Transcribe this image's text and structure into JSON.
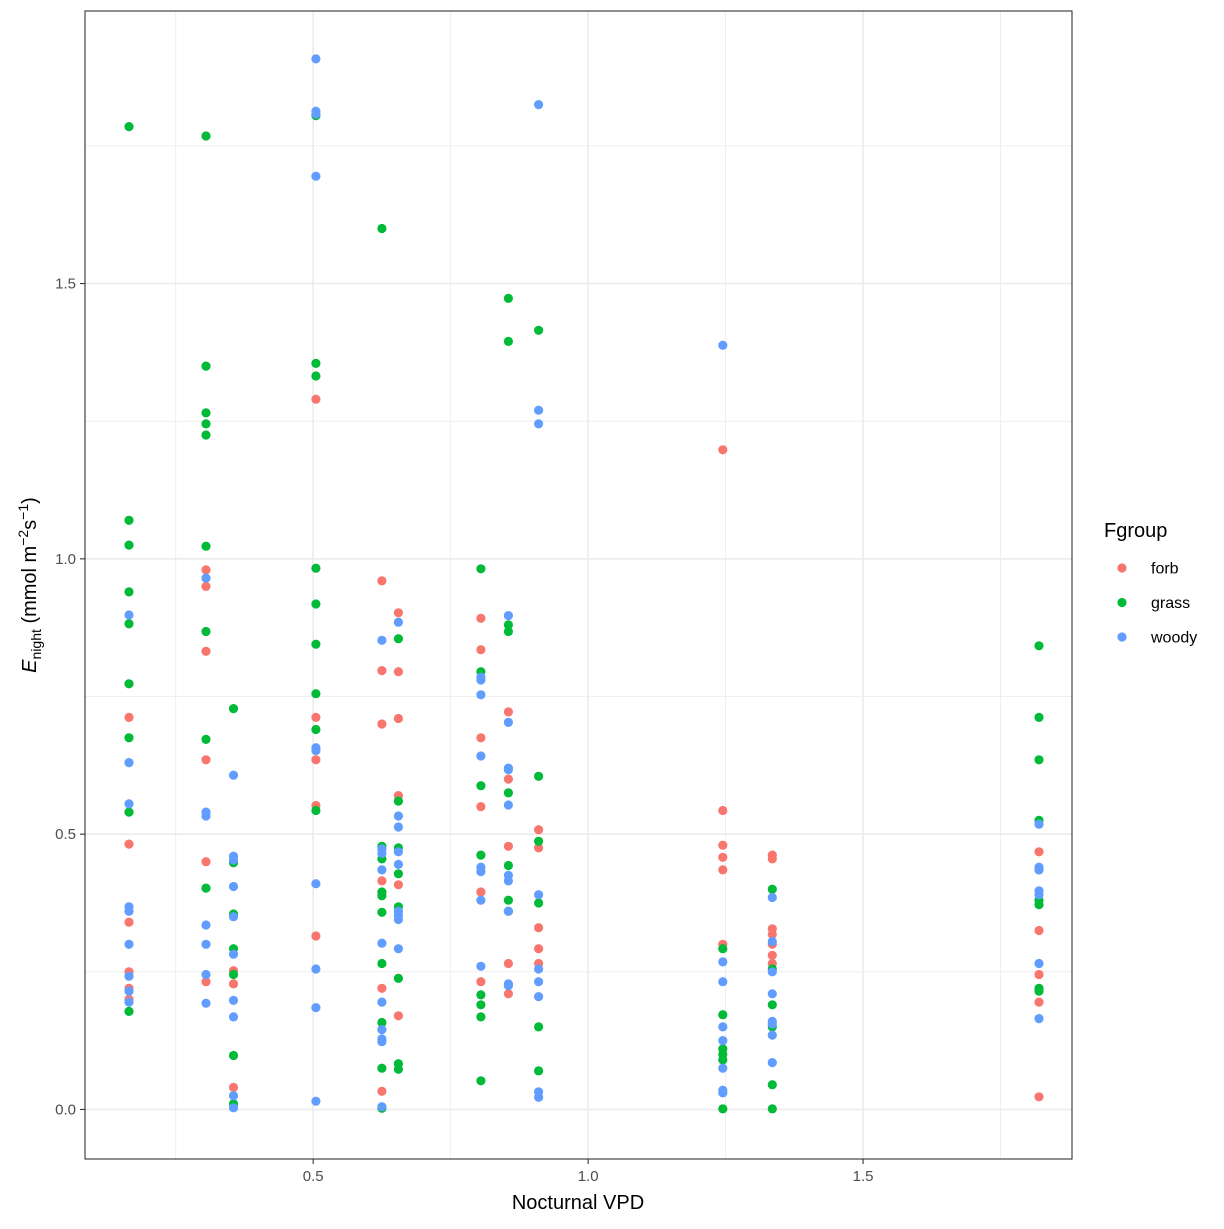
{
  "chart_data": {
    "type": "scatter",
    "xlabel": "Nocturnal VPD",
    "ylabel": {
      "main": "E",
      "sub": "night",
      "unit_open": " (mmol m",
      "exp1": "−2",
      "unit_mid": "s",
      "exp2": "−1",
      "unit_close": ")"
    },
    "xlim": [
      0.085,
      1.88
    ],
    "ylim": [
      -0.09,
      1.995
    ],
    "x_ticks": [
      {
        "value": 0.5,
        "label": "0.5"
      },
      {
        "value": 1.0,
        "label": "1.0"
      },
      {
        "value": 1.5,
        "label": "1.5"
      }
    ],
    "y_ticks": [
      {
        "value": 0.0,
        "label": "0.0"
      },
      {
        "value": 0.5,
        "label": "0.5"
      },
      {
        "value": 1.0,
        "label": "1.0"
      },
      {
        "value": 1.5,
        "label": "1.5"
      }
    ],
    "x_minor": [
      0.25,
      0.75,
      1.25,
      1.75
    ],
    "y_minor": [
      0.25,
      0.75,
      1.25,
      1.75
    ],
    "grid": true,
    "legend": {
      "title": "Fgroup",
      "position": "right"
    },
    "series": [
      {
        "name": "forb",
        "color": "#F8766D",
        "points": [
          [
            0.165,
            0.712
          ],
          [
            0.165,
            0.482
          ],
          [
            0.165,
            0.34
          ],
          [
            0.165,
            0.25
          ],
          [
            0.165,
            0.22
          ],
          [
            0.165,
            0.2
          ],
          [
            0.305,
            0.98
          ],
          [
            0.305,
            0.95
          ],
          [
            0.305,
            0.832
          ],
          [
            0.305,
            0.635
          ],
          [
            0.305,
            0.45
          ],
          [
            0.305,
            0.232
          ],
          [
            0.355,
            0.252
          ],
          [
            0.355,
            0.228
          ],
          [
            0.355,
            0.04
          ],
          [
            0.505,
            1.29
          ],
          [
            0.505,
            0.712
          ],
          [
            0.505,
            0.635
          ],
          [
            0.505,
            0.552
          ],
          [
            0.505,
            0.315
          ],
          [
            0.625,
            0.96
          ],
          [
            0.625,
            0.797
          ],
          [
            0.625,
            0.7
          ],
          [
            0.625,
            0.415
          ],
          [
            0.625,
            0.22
          ],
          [
            0.625,
            0.033
          ],
          [
            0.655,
            0.902
          ],
          [
            0.655,
            0.795
          ],
          [
            0.655,
            0.71
          ],
          [
            0.655,
            0.57
          ],
          [
            0.655,
            0.408
          ],
          [
            0.655,
            0.17
          ],
          [
            0.805,
            0.892
          ],
          [
            0.805,
            0.835
          ],
          [
            0.805,
            0.675
          ],
          [
            0.805,
            0.55
          ],
          [
            0.805,
            0.395
          ],
          [
            0.805,
            0.232
          ],
          [
            0.855,
            0.722
          ],
          [
            0.855,
            0.6
          ],
          [
            0.855,
            0.478
          ],
          [
            0.855,
            0.265
          ],
          [
            0.855,
            0.21
          ],
          [
            0.91,
            0.508
          ],
          [
            0.91,
            0.475
          ],
          [
            0.91,
            0.33
          ],
          [
            0.91,
            0.292
          ],
          [
            0.91,
            0.265
          ],
          [
            1.245,
            1.198
          ],
          [
            1.245,
            0.543
          ],
          [
            1.245,
            0.48
          ],
          [
            1.245,
            0.458
          ],
          [
            1.245,
            0.435
          ],
          [
            1.245,
            0.3
          ],
          [
            1.335,
            0.462
          ],
          [
            1.335,
            0.455
          ],
          [
            1.335,
            0.328
          ],
          [
            1.335,
            0.318
          ],
          [
            1.335,
            0.3
          ],
          [
            1.335,
            0.28
          ],
          [
            1.335,
            0.265
          ],
          [
            1.82,
            0.468
          ],
          [
            1.82,
            0.325
          ],
          [
            1.82,
            0.245
          ],
          [
            1.82,
            0.195
          ],
          [
            1.82,
            0.023
          ]
        ]
      },
      {
        "name": "grass",
        "color": "#00BA38",
        "points": [
          [
            0.165,
            1.785
          ],
          [
            0.165,
            1.07
          ],
          [
            0.165,
            1.025
          ],
          [
            0.165,
            0.94
          ],
          [
            0.165,
            0.882
          ],
          [
            0.165,
            0.773
          ],
          [
            0.165,
            0.675
          ],
          [
            0.165,
            0.54
          ],
          [
            0.165,
            0.178
          ],
          [
            0.305,
            1.768
          ],
          [
            0.305,
            1.35
          ],
          [
            0.305,
            1.265
          ],
          [
            0.305,
            1.245
          ],
          [
            0.305,
            1.225
          ],
          [
            0.305,
            1.023
          ],
          [
            0.305,
            0.868
          ],
          [
            0.305,
            0.672
          ],
          [
            0.305,
            0.402
          ],
          [
            0.355,
            0.728
          ],
          [
            0.355,
            0.448
          ],
          [
            0.355,
            0.355
          ],
          [
            0.355,
            0.292
          ],
          [
            0.355,
            0.245
          ],
          [
            0.355,
            0.098
          ],
          [
            0.355,
            0.01
          ],
          [
            0.505,
            1.805
          ],
          [
            0.505,
            1.355
          ],
          [
            0.505,
            1.332
          ],
          [
            0.505,
            0.983
          ],
          [
            0.505,
            0.918
          ],
          [
            0.505,
            0.845
          ],
          [
            0.505,
            0.755
          ],
          [
            0.505,
            0.69
          ],
          [
            0.505,
            0.543
          ],
          [
            0.625,
            1.6
          ],
          [
            0.625,
            0.478
          ],
          [
            0.625,
            0.455
          ],
          [
            0.625,
            0.395
          ],
          [
            0.625,
            0.388
          ],
          [
            0.625,
            0.358
          ],
          [
            0.625,
            0.265
          ],
          [
            0.625,
            0.158
          ],
          [
            0.625,
            0.075
          ],
          [
            0.625,
            0.002
          ],
          [
            0.655,
            0.855
          ],
          [
            0.655,
            0.56
          ],
          [
            0.655,
            0.475
          ],
          [
            0.655,
            0.428
          ],
          [
            0.655,
            0.368
          ],
          [
            0.655,
            0.238
          ],
          [
            0.655,
            0.083
          ],
          [
            0.655,
            0.073
          ],
          [
            0.805,
            0.982
          ],
          [
            0.805,
            0.795
          ],
          [
            0.805,
            0.588
          ],
          [
            0.805,
            0.462
          ],
          [
            0.805,
            0.208
          ],
          [
            0.805,
            0.19
          ],
          [
            0.805,
            0.168
          ],
          [
            0.805,
            0.052
          ],
          [
            0.855,
            1.473
          ],
          [
            0.855,
            1.395
          ],
          [
            0.855,
            0.88
          ],
          [
            0.855,
            0.868
          ],
          [
            0.855,
            0.575
          ],
          [
            0.855,
            0.443
          ],
          [
            0.855,
            0.38
          ],
          [
            0.855,
            0.36
          ],
          [
            0.91,
            1.415
          ],
          [
            0.91,
            0.605
          ],
          [
            0.91,
            0.487
          ],
          [
            0.91,
            0.375
          ],
          [
            0.91,
            0.15
          ],
          [
            0.91,
            0.07
          ],
          [
            1.245,
            0.292
          ],
          [
            1.245,
            0.172
          ],
          [
            1.245,
            0.11
          ],
          [
            1.245,
            0.1
          ],
          [
            1.245,
            0.09
          ],
          [
            1.245,
            0.001
          ],
          [
            1.335,
            0.4
          ],
          [
            1.335,
            0.255
          ],
          [
            1.335,
            0.19
          ],
          [
            1.335,
            0.15
          ],
          [
            1.335,
            0.045
          ],
          [
            1.335,
            0.001
          ],
          [
            1.82,
            0.842
          ],
          [
            1.82,
            0.712
          ],
          [
            1.82,
            0.635
          ],
          [
            1.82,
            0.525
          ],
          [
            1.82,
            0.435
          ],
          [
            1.82,
            0.38
          ],
          [
            1.82,
            0.372
          ],
          [
            1.82,
            0.22
          ],
          [
            1.82,
            0.215
          ]
        ]
      },
      {
        "name": "woody",
        "color": "#619CFF",
        "points": [
          [
            0.165,
            0.898
          ],
          [
            0.165,
            0.63
          ],
          [
            0.165,
            0.555
          ],
          [
            0.165,
            0.368
          ],
          [
            0.165,
            0.36
          ],
          [
            0.165,
            0.3
          ],
          [
            0.165,
            0.242
          ],
          [
            0.165,
            0.215
          ],
          [
            0.165,
            0.195
          ],
          [
            0.305,
            0.965
          ],
          [
            0.305,
            0.54
          ],
          [
            0.305,
            0.533
          ],
          [
            0.305,
            0.335
          ],
          [
            0.305,
            0.3
          ],
          [
            0.305,
            0.245
          ],
          [
            0.305,
            0.193
          ],
          [
            0.355,
            0.607
          ],
          [
            0.355,
            0.46
          ],
          [
            0.355,
            0.453
          ],
          [
            0.355,
            0.405
          ],
          [
            0.355,
            0.35
          ],
          [
            0.355,
            0.282
          ],
          [
            0.355,
            0.198
          ],
          [
            0.355,
            0.168
          ],
          [
            0.355,
            0.025
          ],
          [
            0.355,
            0.003
          ],
          [
            0.505,
            1.908
          ],
          [
            0.505,
            1.813
          ],
          [
            0.505,
            1.808
          ],
          [
            0.505,
            1.695
          ],
          [
            0.505,
            0.657
          ],
          [
            0.505,
            0.652
          ],
          [
            0.505,
            0.41
          ],
          [
            0.505,
            0.255
          ],
          [
            0.505,
            0.185
          ],
          [
            0.505,
            0.015
          ],
          [
            0.625,
            0.852
          ],
          [
            0.625,
            0.473
          ],
          [
            0.625,
            0.465
          ],
          [
            0.625,
            0.435
          ],
          [
            0.625,
            0.302
          ],
          [
            0.625,
            0.195
          ],
          [
            0.625,
            0.145
          ],
          [
            0.625,
            0.128
          ],
          [
            0.625,
            0.123
          ],
          [
            0.625,
            0.005
          ],
          [
            0.655,
            0.885
          ],
          [
            0.655,
            0.533
          ],
          [
            0.655,
            0.513
          ],
          [
            0.655,
            0.468
          ],
          [
            0.655,
            0.445
          ],
          [
            0.655,
            0.36
          ],
          [
            0.655,
            0.352
          ],
          [
            0.655,
            0.345
          ],
          [
            0.655,
            0.292
          ],
          [
            0.805,
            0.785
          ],
          [
            0.805,
            0.78
          ],
          [
            0.805,
            0.753
          ],
          [
            0.805,
            0.642
          ],
          [
            0.805,
            0.44
          ],
          [
            0.805,
            0.432
          ],
          [
            0.805,
            0.38
          ],
          [
            0.805,
            0.26
          ],
          [
            0.855,
            0.897
          ],
          [
            0.855,
            0.703
          ],
          [
            0.855,
            0.62
          ],
          [
            0.855,
            0.617
          ],
          [
            0.855,
            0.553
          ],
          [
            0.855,
            0.425
          ],
          [
            0.855,
            0.415
          ],
          [
            0.855,
            0.36
          ],
          [
            0.855,
            0.228
          ],
          [
            0.855,
            0.225
          ],
          [
            0.91,
            1.825
          ],
          [
            0.91,
            1.27
          ],
          [
            0.91,
            1.245
          ],
          [
            0.91,
            0.39
          ],
          [
            0.91,
            0.255
          ],
          [
            0.91,
            0.232
          ],
          [
            0.91,
            0.205
          ],
          [
            0.91,
            0.032
          ],
          [
            0.91,
            0.022
          ],
          [
            1.245,
            1.388
          ],
          [
            1.245,
            0.268
          ],
          [
            1.245,
            0.232
          ],
          [
            1.245,
            0.15
          ],
          [
            1.245,
            0.125
          ],
          [
            1.245,
            0.075
          ],
          [
            1.245,
            0.035
          ],
          [
            1.245,
            0.03
          ],
          [
            1.335,
            0.385
          ],
          [
            1.335,
            0.305
          ],
          [
            1.335,
            0.25
          ],
          [
            1.335,
            0.21
          ],
          [
            1.335,
            0.16
          ],
          [
            1.335,
            0.155
          ],
          [
            1.335,
            0.135
          ],
          [
            1.335,
            0.085
          ],
          [
            1.82,
            0.518
          ],
          [
            1.82,
            0.44
          ],
          [
            1.82,
            0.435
          ],
          [
            1.82,
            0.397
          ],
          [
            1.82,
            0.39
          ],
          [
            1.82,
            0.265
          ],
          [
            1.82,
            0.165
          ]
        ]
      }
    ]
  }
}
